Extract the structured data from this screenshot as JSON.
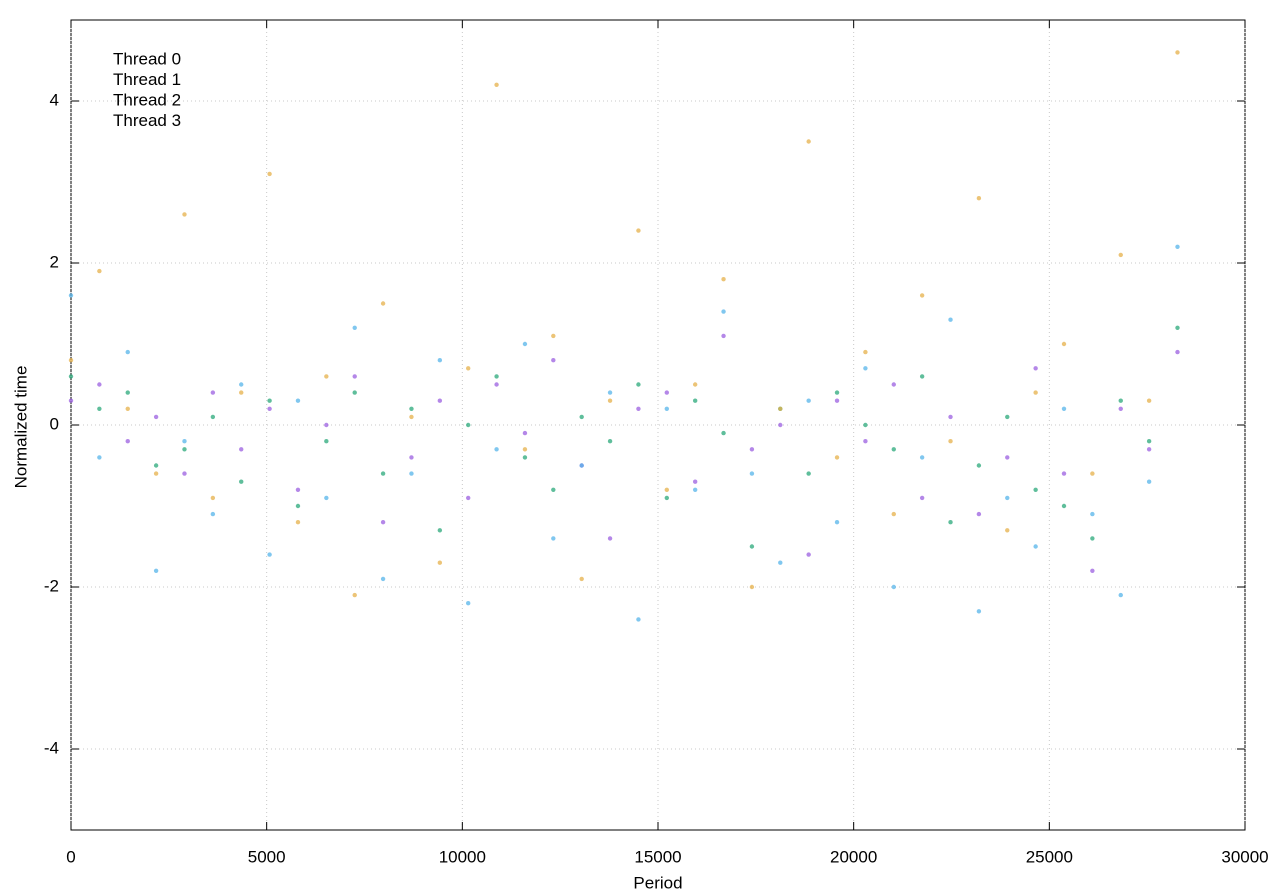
{
  "chart_data": {
    "type": "scatter",
    "xlabel": "Period",
    "ylabel": "Normalized time",
    "xlim": [
      0,
      30000
    ],
    "ylim": [
      -5,
      5
    ],
    "xticks": [
      0,
      5000,
      10000,
      15000,
      20000,
      25000,
      30000
    ],
    "yticks": [
      -4,
      -2,
      0,
      2,
      4
    ],
    "grid": true,
    "legend_position": "top-left",
    "x": [
      0,
      725,
      1450,
      2175,
      2900,
      3625,
      4350,
      5075,
      5800,
      6525,
      7250,
      7975,
      8700,
      9425,
      10150,
      10875,
      11600,
      12325,
      13050,
      13775,
      14500,
      15225,
      15950,
      16675,
      17400,
      18125,
      18850,
      19575,
      20300,
      21025,
      21750,
      22475,
      23200,
      23925,
      24650,
      25375,
      26100,
      26825,
      27550,
      28275
    ],
    "series": [
      {
        "name": "Thread 0",
        "color": "#9b5fe0",
        "values": [
          0.3,
          0.5,
          -0.2,
          0.1,
          -0.6,
          0.4,
          -0.3,
          0.2,
          -0.8,
          0.0,
          0.6,
          -1.2,
          -0.4,
          0.3,
          -0.9,
          0.5,
          -0.1,
          0.8,
          -0.5,
          -1.4,
          0.2,
          0.4,
          -0.7,
          1.1,
          -0.3,
          0.0,
          -1.6,
          0.3,
          -0.2,
          0.5,
          -0.9,
          0.1,
          -1.1,
          -0.4,
          0.7,
          -0.6,
          -1.8,
          0.2,
          -0.3,
          0.9
        ]
      },
      {
        "name": "Thread 1",
        "color": "#2aa87a",
        "values": [
          0.6,
          0.2,
          0.4,
          -0.5,
          -0.3,
          0.1,
          -0.7,
          0.3,
          -1.0,
          -0.2,
          0.4,
          -0.6,
          0.2,
          -1.3,
          0.0,
          0.6,
          -0.4,
          -0.8,
          0.1,
          -0.2,
          0.5,
          -0.9,
          0.3,
          -0.1,
          -1.5,
          0.2,
          -0.6,
          0.4,
          0.0,
          -0.3,
          0.6,
          -1.2,
          -0.5,
          0.1,
          -0.8,
          -1.0,
          -1.4,
          0.3,
          -0.2,
          1.2
        ]
      },
      {
        "name": "Thread 2",
        "color": "#56b4e9",
        "values": [
          1.6,
          -0.4,
          0.9,
          -1.8,
          -0.2,
          -1.1,
          0.5,
          -1.6,
          0.3,
          -0.9,
          1.2,
          -1.9,
          -0.6,
          0.8,
          -2.2,
          -0.3,
          1.0,
          -1.4,
          -0.5,
          0.4,
          -2.4,
          0.2,
          -0.8,
          1.4,
          -0.6,
          -1.7,
          0.3,
          -1.2,
          0.7,
          -2.0,
          -0.4,
          1.3,
          -2.3,
          -0.9,
          -1.5,
          0.2,
          -1.1,
          -2.1,
          -0.7,
          2.2
        ]
      },
      {
        "name": "Thread 3",
        "color": "#e6b04a",
        "values": [
          0.8,
          1.9,
          0.2,
          -0.6,
          2.6,
          -0.9,
          0.4,
          3.1,
          -1.2,
          0.6,
          -2.1,
          1.5,
          0.1,
          -1.7,
          0.7,
          4.2,
          -0.3,
          1.1,
          -1.9,
          0.3,
          2.4,
          -0.8,
          0.5,
          1.8,
          -2.0,
          0.2,
          3.5,
          -0.4,
          0.9,
          -1.1,
          1.6,
          -0.2,
          2.8,
          -1.3,
          0.4,
          1.0,
          -0.6,
          2.1,
          0.3,
          4.6
        ]
      }
    ]
  }
}
